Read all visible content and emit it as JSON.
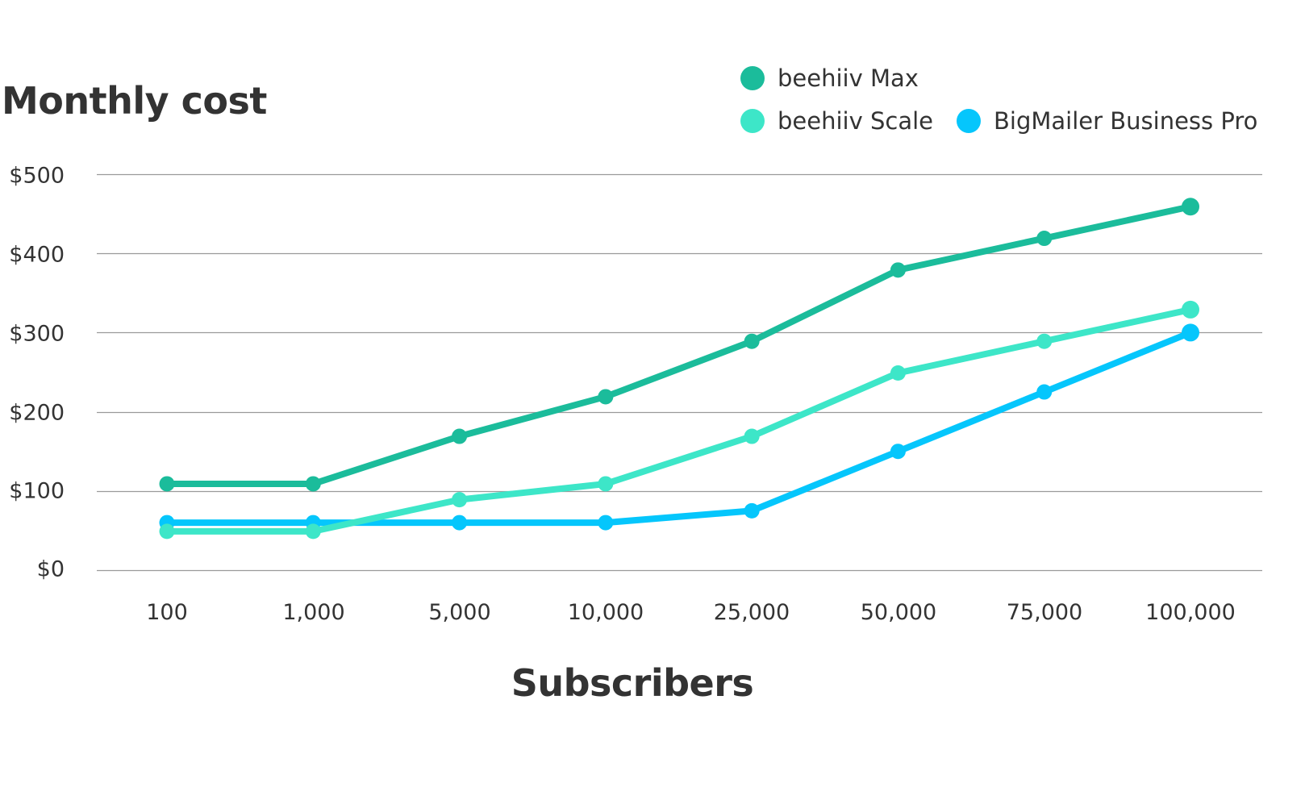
{
  "chart": {
    "y_title": "Monthly cost",
    "x_title": "Subscribers",
    "legend": [
      {
        "label": "beehiiv Max",
        "color": "#1bbc9b"
      },
      {
        "label": "beehiiv Scale",
        "color": "#3de6c8"
      },
      {
        "label": "BigMailer Business Pro",
        "color": "#05c6fc"
      }
    ],
    "y_ticks": [
      "$500",
      "$400",
      "$300",
      "$200",
      "$100",
      "$0"
    ],
    "x_ticks": [
      "100",
      "1,000",
      "5,000",
      "10,000",
      "25,000",
      "50,000",
      "75,000",
      "100,000"
    ]
  },
  "chart_data": {
    "type": "line",
    "title": "",
    "xlabel": "Subscribers",
    "ylabel": "Monthly cost",
    "categories": [
      "100",
      "1,000",
      "5,000",
      "10,000",
      "25,000",
      "50,000",
      "75,000",
      "100,000"
    ],
    "ylim": [
      0,
      500
    ],
    "y_ticks": [
      0,
      100,
      200,
      300,
      400,
      500
    ],
    "y_tick_format": "$",
    "grid": true,
    "legend_position": "top-right",
    "series": [
      {
        "name": "beehiiv Max",
        "color": "#1bbc9b",
        "values": [
          109,
          109,
          169,
          219,
          289,
          379,
          419,
          459
        ]
      },
      {
        "name": "beehiiv Scale",
        "color": "#3de6c8",
        "values": [
          49,
          49,
          89,
          109,
          169,
          249,
          289,
          329
        ]
      },
      {
        "name": "BigMailer Business Pro",
        "color": "#05c6fc",
        "values": [
          60,
          60,
          60,
          60,
          75,
          150,
          225,
          300
        ]
      }
    ]
  }
}
